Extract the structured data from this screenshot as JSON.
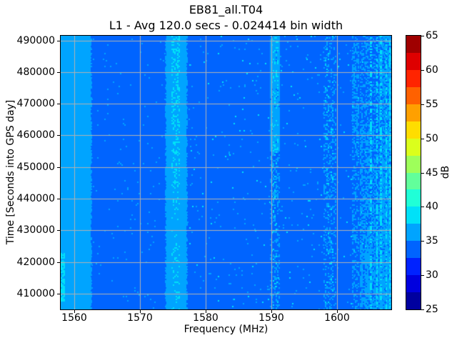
{
  "figure": {
    "title": "EB81_all.T04",
    "subtitle": "L1 - Avg 120.0 secs - 0.024414 bin width"
  },
  "chart_data": {
    "type": "heatmap",
    "title": "EB81_all.T04",
    "subtitle": "L1 - Avg 120.0 secs - 0.024414 bin width",
    "xlabel": "Frequency (MHz)",
    "ylabel": "Time [Seconds into GPS day]",
    "xlim": [
      1557.9,
      1608.3
    ],
    "ylim": [
      405000,
      491500
    ],
    "xticks": [
      1560,
      1570,
      1580,
      1590,
      1600
    ],
    "yticks": [
      410000,
      420000,
      430000,
      440000,
      450000,
      460000,
      470000,
      480000,
      490000
    ],
    "grid": true,
    "grid_color": "#b2b2b2",
    "colormap": {
      "name": "jet-discrete",
      "levels": 16,
      "bin_width_db": 2.5,
      "colors": [
        "#00009F",
        "#0000DE",
        "#0022FF",
        "#0064FF",
        "#00A4FF",
        "#00E1F8",
        "#20FFD7",
        "#62FF9B",
        "#9EFF5A",
        "#DBFF1C",
        "#FFDD00",
        "#FFA000",
        "#FF6100",
        "#FF2400",
        "#DE0000",
        "#9F0000"
      ]
    },
    "colorbar": {
      "label": "dB",
      "min": 25,
      "max": 65,
      "ticks": [
        25,
        30,
        35,
        40,
        45,
        50,
        55,
        60,
        65
      ]
    },
    "heat": {
      "seed": 7,
      "background_level": 3,
      "background_db": "32.5-35",
      "regions": [
        {
          "name": "noise-shelf-left",
          "f0": 1557.9,
          "f1": 1562.5,
          "level": 4,
          "db": "35-37.5",
          "solid": true,
          "jitter_right": true
        },
        {
          "name": "carrier-left-edge",
          "f0": 1557.9,
          "f1": 1558.4,
          "level": 5,
          "db": "37.5-40",
          "profile": [
            [
              0.79,
              0.97,
              0.78
            ]
          ]
        },
        {
          "name": "gps-l1-band",
          "f0": 1574.0,
          "f1": 1577.1,
          "level": 4,
          "db": "35-37.5",
          "solid": true,
          "jitter_left": true,
          "jitter_right": true
        },
        {
          "name": "gps-l1-core",
          "f0": 1574.8,
          "f1": 1576.1,
          "level": 5,
          "db": "37.5-40",
          "profile": [
            [
              0,
              0.3,
              0.38
            ],
            [
              0.3,
              0.55,
              0.25
            ],
            [
              0.55,
              1,
              0.11
            ]
          ]
        },
        {
          "name": "band-1590",
          "f0": 1589.8,
          "f1": 1591.2,
          "level": 4,
          "db": "35-37.5",
          "profile": [
            [
              0,
              0.42,
              0.95
            ],
            [
              0.42,
              0.62,
              0.4
            ],
            [
              0.62,
              1,
              0.26
            ]
          ]
        },
        {
          "name": "band-1590-core",
          "f0": 1590.0,
          "f1": 1591.0,
          "level": 5,
          "db": "37.5-40",
          "profile": [
            [
              0,
              0.42,
              0.16
            ],
            [
              0.42,
              1,
              0.05
            ]
          ]
        },
        {
          "name": "speckle-1599",
          "f0": 1598.0,
          "f1": 1599.8,
          "level": 4,
          "db": "35-37.5",
          "profile": [
            [
              0,
              0.25,
              0.2
            ],
            [
              0.25,
              0.8,
              0.3
            ],
            [
              0.8,
              1,
              0.22
            ]
          ]
        },
        {
          "name": "speckle-1599-peaks",
          "f0": 1598.2,
          "f1": 1599.5,
          "level": 5,
          "db": "37.5-40",
          "profile": [
            [
              0,
              1,
              0.05
            ]
          ]
        },
        {
          "name": "band-1602",
          "f0": 1602.3,
          "f1": 1603.4,
          "level": 4,
          "db": "35-37.5",
          "profile": [
            [
              0,
              0.35,
              0.5
            ],
            [
              0.35,
              1,
              0.33
            ]
          ]
        },
        {
          "name": "right-mixed-1603-1608",
          "f0": 1603.5,
          "f1": 1608.3,
          "level": 4,
          "db": "35-37.5",
          "profile": [
            [
              0,
              0.35,
              0.38
            ],
            [
              0.35,
              0.7,
              0.55
            ],
            [
              0.7,
              1,
              0.72
            ]
          ]
        },
        {
          "name": "right-edge-light",
          "f0": 1606.4,
          "f1": 1608.3,
          "level": 4,
          "db": "35-37.5",
          "profile": [
            [
              0,
              1,
              0.5
            ]
          ]
        },
        {
          "name": "scatter-light",
          "f0": 1562.6,
          "f1": 1608.3,
          "level": 4,
          "db": "35-37.5",
          "profile": [
            [
              0,
              1,
              0.012
            ]
          ]
        },
        {
          "name": "scatter-cyan",
          "f0": 1577.3,
          "f1": 1608.3,
          "level": 5,
          "db": "37.5-40",
          "profile": [
            [
              0,
              1,
              0.005
            ]
          ]
        }
      ],
      "streaks": [
        {
          "name": "streak-1605",
          "f": 1605.0,
          "w": 0.28,
          "level": 5,
          "density": 0.45
        },
        {
          "name": "streak-1606",
          "f": 1606.0,
          "w": 0.25,
          "level": 5,
          "density": 0.5
        },
        {
          "name": "streak-1606b",
          "f": 1606.6,
          "w": 0.28,
          "level": 5,
          "density": 0.55
        },
        {
          "name": "streak-1607",
          "f": 1607.4,
          "w": 0.25,
          "level": 5,
          "density": 0.5
        },
        {
          "name": "streak-1608",
          "f": 1608.0,
          "w": 0.25,
          "level": 5,
          "density": 0.6
        },
        {
          "name": "gap-1604",
          "f": 1603.9,
          "w": 0.3,
          "level": 3,
          "density": 0.35
        },
        {
          "name": "gap-1605",
          "f": 1605.4,
          "w": 0.2,
          "level": 3,
          "density": 0.3
        }
      ]
    }
  }
}
